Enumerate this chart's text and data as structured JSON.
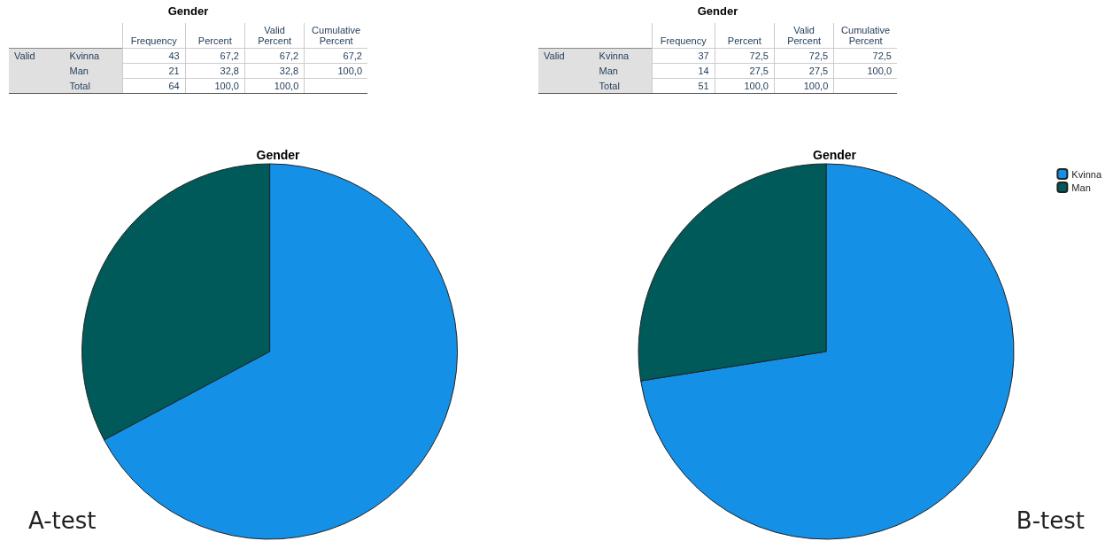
{
  "chart_data": [
    {
      "type": "other",
      "title": "Gender",
      "annotations": [
        "Valid"
      ],
      "categories": [
        "Frequency",
        "Percent",
        "Valid Percent",
        "Cumulative Percent"
      ],
      "y_categories": [
        "Kvinna",
        "Man",
        "Total"
      ],
      "cell_labels": [
        [
          "43",
          "67,2",
          "67,2",
          "67,2"
        ],
        [
          "21",
          "32,8",
          "32,8",
          "100,0"
        ],
        [
          "64",
          "100,0",
          "100,0",
          null
        ]
      ]
    },
    {
      "type": "pie",
      "title": "Gender",
      "annotations": [
        "A-test"
      ],
      "categories": [
        null,
        null
      ],
      "values": [
        67.2,
        32.8
      ],
      "colors": [
        "#1490e6",
        "#005a5a"
      ],
      "legend": false
    },
    {
      "type": "other",
      "title": "Gender",
      "annotations": [
        "Valid"
      ],
      "categories": [
        "Frequency",
        "Percent",
        "Valid Percent",
        "Cumulative Percent"
      ],
      "y_categories": [
        "Kvinna",
        "Man",
        "Total"
      ],
      "cell_labels": [
        [
          "37",
          "72,5",
          "72,5",
          "72,5"
        ],
        [
          "14",
          "27,5",
          "27,5",
          "100,0"
        ],
        [
          "51",
          "100,0",
          "100,0",
          null
        ]
      ]
    },
    {
      "type": "pie",
      "title": "Gender",
      "annotations": [
        "B-test"
      ],
      "categories": [
        "Kvinna",
        "Man"
      ],
      "values": [
        72.5,
        27.5
      ],
      "colors": [
        "#1490e6",
        "#005a5a"
      ],
      "legend": "top right"
    }
  ]
}
